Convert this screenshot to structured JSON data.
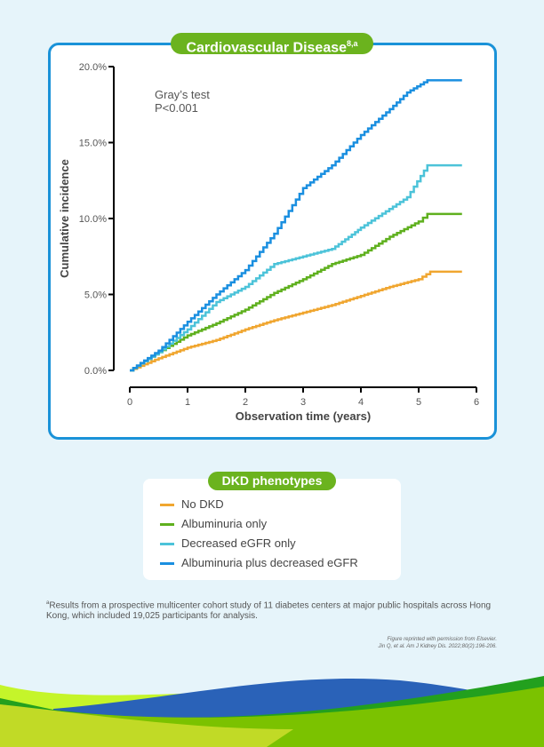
{
  "title": "Cardiovascular Disease",
  "title_sup": "8,a",
  "chart_data": {
    "type": "line",
    "step": true,
    "xlabel": "Observation time (years)",
    "ylabel": "Cumulative incidence",
    "xlim": [
      0,
      6
    ],
    "ylim": [
      0,
      20
    ],
    "xticks": [
      "0",
      "1",
      "2",
      "3",
      "4",
      "5",
      "6"
    ],
    "yticks": [
      "0.0%",
      "5.0%",
      "10.0%",
      "15.0%",
      "20.0%"
    ],
    "annotation": [
      "Gray’s test",
      "P<0.001"
    ],
    "series": [
      {
        "name": "No DKD",
        "color": "#f0a630",
        "x": [
          0,
          0.5,
          1,
          1.5,
          2,
          2.5,
          3,
          3.5,
          4,
          4.5,
          5,
          5.2,
          5.75
        ],
        "y": [
          0,
          0.8,
          1.5,
          2,
          2.7,
          3.3,
          3.8,
          4.3,
          4.9,
          5.5,
          6.0,
          6.5,
          6.5
        ]
      },
      {
        "name": "Albuminuria only",
        "color": "#5fb01e",
        "x": [
          0,
          0.5,
          1,
          1.5,
          2,
          2.5,
          3,
          3.5,
          4,
          4.5,
          5,
          5.15,
          5.75
        ],
        "y": [
          0,
          1.2,
          2.3,
          3.1,
          4,
          5.1,
          6,
          7,
          7.6,
          8.8,
          9.8,
          10.3,
          10.3
        ]
      },
      {
        "name": "Decreased eGFR only",
        "color": "#4cc3d9",
        "x": [
          0,
          0.5,
          1,
          1.5,
          2,
          2.5,
          3,
          3.5,
          3.9,
          4.0,
          4.8,
          5.15,
          5.75
        ],
        "y": [
          0,
          1.2,
          2.7,
          4.5,
          5.5,
          7,
          7.5,
          8,
          9.1,
          9.4,
          11.4,
          13.5,
          13.5
        ]
      },
      {
        "name": "Albuminuria plus decreased eGFR",
        "color": "#1a8fe0",
        "x": [
          0,
          0.5,
          1,
          1.5,
          2,
          2.5,
          3,
          3.5,
          4,
          4.5,
          4.8,
          5.15,
          5.75
        ],
        "y": [
          0,
          1.3,
          3.2,
          5,
          6.6,
          9,
          12,
          13.5,
          15.5,
          17.2,
          18.3,
          19.1,
          19.1
        ]
      }
    ]
  },
  "legend": {
    "title": "DKD phenotypes"
  },
  "footnote": {
    "mark": "a",
    "text": "Results from a prospective multicenter cohort study of 11 diabetes centers at major public hospitals across Hong Kong, which included 19,025 participants for analysis."
  },
  "citation": {
    "line1": "Figure reprinted with permission from Elsevier.",
    "line2": "Jin Q, et al. Am J Kidney Dis. 2022;80(2):196-206."
  }
}
